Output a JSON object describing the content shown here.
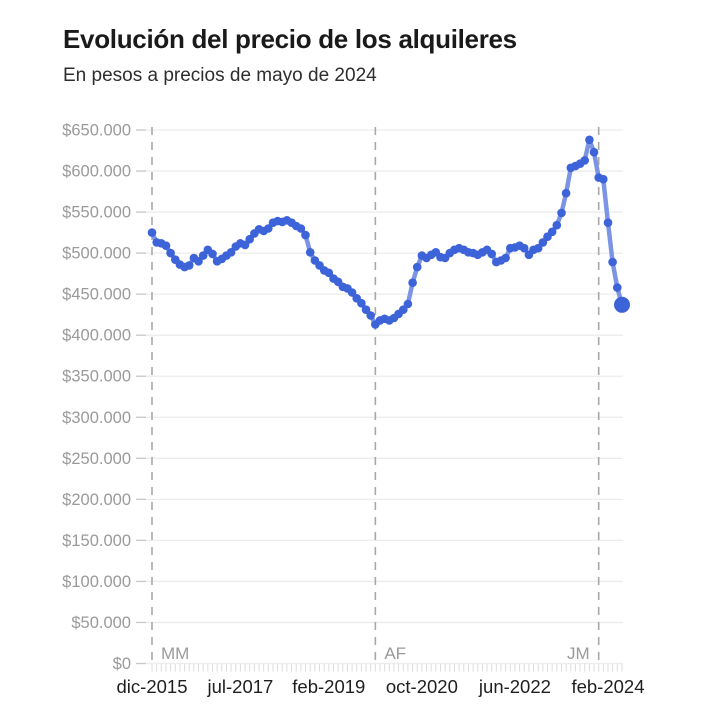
{
  "header": {
    "title": "Evolución del precio de los alquileres",
    "subtitle": "En pesos a precios de mayo de 2024"
  },
  "chart_data": {
    "type": "line",
    "title": "Evolución del precio de los alquileres",
    "subtitle": "En pesos a precios de mayo de 2024",
    "frequency": "monthly",
    "x_start": "dic-2015",
    "x_end": "may-2024",
    "ylim": [
      0,
      650000
    ],
    "grid": true,
    "legend_position": "none",
    "months": [
      "dic-2015",
      "ene-2016",
      "feb-2016",
      "mar-2016",
      "abr-2016",
      "may-2016",
      "jun-2016",
      "jul-2016",
      "ago-2016",
      "sep-2016",
      "oct-2016",
      "nov-2016",
      "dic-2016",
      "ene-2017",
      "feb-2017",
      "mar-2017",
      "abr-2017",
      "may-2017",
      "jun-2017",
      "jul-2017",
      "ago-2017",
      "sep-2017",
      "oct-2017",
      "nov-2017",
      "dic-2017",
      "ene-2018",
      "feb-2018",
      "mar-2018",
      "abr-2018",
      "may-2018",
      "jun-2018",
      "jul-2018",
      "ago-2018",
      "sep-2018",
      "oct-2018",
      "nov-2018",
      "dic-2018",
      "ene-2019",
      "feb-2019",
      "mar-2019",
      "abr-2019",
      "may-2019",
      "jun-2019",
      "jul-2019",
      "ago-2019",
      "sep-2019",
      "oct-2019",
      "nov-2019",
      "dic-2019",
      "ene-2020",
      "feb-2020",
      "mar-2020",
      "abr-2020",
      "may-2020",
      "jun-2020",
      "jul-2020",
      "ago-2020",
      "sep-2020",
      "oct-2020",
      "nov-2020",
      "dic-2020",
      "ene-2021",
      "feb-2021",
      "mar-2021",
      "abr-2021",
      "may-2021",
      "jun-2021",
      "jul-2021",
      "ago-2021",
      "sep-2021",
      "oct-2021",
      "nov-2021",
      "dic-2021",
      "ene-2022",
      "feb-2022",
      "mar-2022",
      "abr-2022",
      "may-2022",
      "jun-2022",
      "jul-2022",
      "ago-2022",
      "sep-2022",
      "oct-2022",
      "nov-2022",
      "dic-2022",
      "ene-2023",
      "feb-2023",
      "mar-2023",
      "abr-2023",
      "may-2023",
      "jun-2023",
      "jul-2023",
      "ago-2023",
      "sep-2023",
      "oct-2023",
      "nov-2023",
      "dic-2023",
      "ene-2024",
      "feb-2024",
      "mar-2024",
      "abr-2024",
      "may-2024"
    ],
    "values": [
      525000,
      513000,
      512000,
      509000,
      500000,
      492000,
      486000,
      483000,
      485000,
      494000,
      490000,
      497000,
      504000,
      499000,
      490000,
      493000,
      497000,
      501000,
      508000,
      512000,
      510000,
      517000,
      524000,
      529000,
      527000,
      530000,
      537000,
      539000,
      538000,
      540000,
      537000,
      533000,
      530000,
      522000,
      501000,
      491000,
      485000,
      479000,
      476000,
      469000,
      465000,
      459000,
      457000,
      452000,
      445000,
      439000,
      431000,
      424000,
      413000,
      418000,
      420000,
      418000,
      421000,
      426000,
      431000,
      438000,
      464000,
      483000,
      497000,
      494000,
      498000,
      501000,
      495000,
      494000,
      500000,
      504000,
      506000,
      504000,
      501000,
      500000,
      498000,
      501000,
      504000,
      499000,
      489000,
      491000,
      494000,
      506000,
      507000,
      509000,
      506000,
      498000,
      504000,
      506000,
      513000,
      520000,
      526000,
      534000,
      549000,
      573000,
      604000,
      606000,
      609000,
      613000,
      638000,
      623000,
      592000,
      590000,
      537000,
      489000,
      458000,
      437000
    ],
    "y_tick_labels": [
      "$650.000",
      "$600.000",
      "$550.000",
      "$500.000",
      "$450.000",
      "$400.000",
      "$350.000",
      "$300.000",
      "$250.000",
      "$200.000",
      "$150.000",
      "$100.000",
      "$50.000",
      "$0"
    ],
    "y_tick_values": [
      650000,
      600000,
      550000,
      500000,
      450000,
      400000,
      350000,
      300000,
      250000,
      200000,
      150000,
      100000,
      50000,
      0
    ],
    "x_ticks": [
      {
        "label": "dic-2015",
        "month": 0
      },
      {
        "label": "jul-2017",
        "month": 19
      },
      {
        "label": "feb-2019",
        "month": 38
      },
      {
        "label": "oct-2020",
        "month": 58
      },
      {
        "label": "jun-2022",
        "month": 78
      },
      {
        "label": "feb-2024",
        "month": 98
      }
    ],
    "annotations": [
      {
        "label": "MM",
        "month": 0,
        "side": "right"
      },
      {
        "label": "AF",
        "month": 48,
        "side": "right"
      },
      {
        "label": "JM",
        "month": 96,
        "side": "left"
      }
    ],
    "colors": {
      "line": "#7B95E4",
      "point": "#3D63D9",
      "grid": "#ECECEC",
      "y_tick_stub": "#C9C9C9",
      "month_tick": "#DCDCDC",
      "axis_text": "#9A9A9A",
      "x_axis_text": "#1F1F1F",
      "annotation_line": "#A8A8A8",
      "annotation_text": "#9A9A9A"
    }
  }
}
